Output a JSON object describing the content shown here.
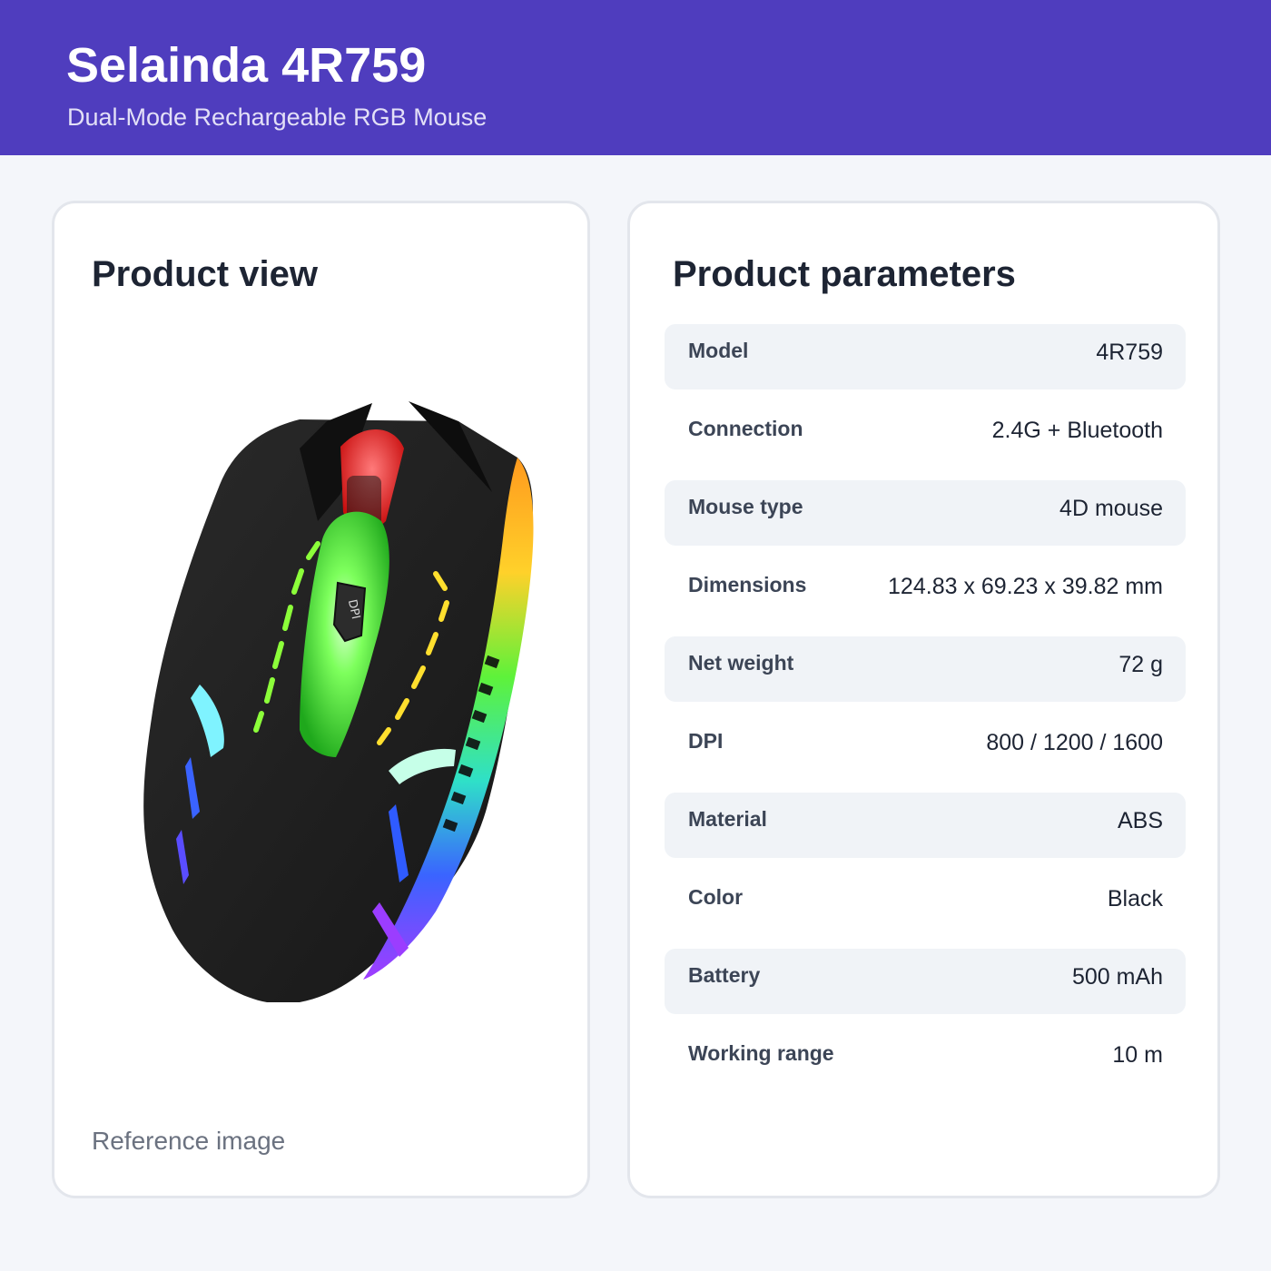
{
  "header": {
    "title": "Selainda 4R759",
    "subtitle": "Dual-Mode Rechargeable RGB Mouse"
  },
  "left_card": {
    "title": "Product view",
    "caption": "Reference image",
    "mouse_dpi_label": "DPI"
  },
  "right_card": {
    "title": "Product parameters",
    "params": [
      {
        "label": "Model",
        "value": "4R759"
      },
      {
        "label": "Connection",
        "value": "2.4G + Bluetooth"
      },
      {
        "label": "Mouse type",
        "value": "4D mouse"
      },
      {
        "label": "Dimensions",
        "value": "124.83 x 69.23 x 39.82 mm"
      },
      {
        "label": "Net weight",
        "value": "72 g"
      },
      {
        "label": "DPI",
        "value": "800 / 1200 / 1600"
      },
      {
        "label": "Material",
        "value": "ABS"
      },
      {
        "label": "Color",
        "value": "Black"
      },
      {
        "label": "Battery",
        "value": "500 mAh"
      },
      {
        "label": "Working range",
        "value": "10 m"
      }
    ]
  },
  "colors": {
    "header_bg": "#4f3dbe",
    "page_bg": "#f4f6fa",
    "row_shade": "#f0f3f7"
  }
}
